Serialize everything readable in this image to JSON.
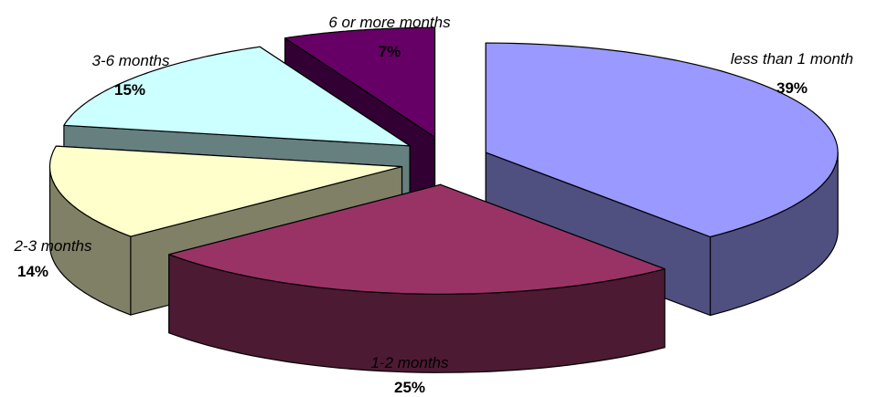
{
  "chart_data": {
    "type": "pie",
    "style": "3d-exploded",
    "slices": [
      {
        "name": "less than 1 month",
        "value": 39,
        "label": "39%",
        "top": "#9999ff",
        "side": "#4f4f80"
      },
      {
        "name": "1-2 months",
        "value": 25,
        "label": "25%",
        "top": "#993366",
        "side": "#4d1a33"
      },
      {
        "name": "2-3 months",
        "value": 14,
        "label": "14%",
        "top": "#ffffcc",
        "side": "#808066"
      },
      {
        "name": "3-6 months",
        "value": 15,
        "label": "15%",
        "top": "#ccffff",
        "side": "#668080"
      },
      {
        "name": "6 or more months",
        "value": 7,
        "label": "7%",
        "top": "#660066",
        "side": "#330033"
      }
    ]
  }
}
